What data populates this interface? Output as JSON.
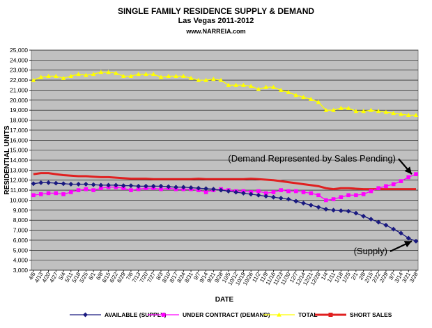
{
  "chart_data": {
    "type": "line",
    "title": "SINGLE FAMILY RESIDENCE SUPPLY & DEMAND",
    "subtitle": "Las Vegas 2011-2012",
    "source": "www.NARREIA.com",
    "xlabel": "DATE",
    "ylabel": "RESIDENTIAL UNITS",
    "ylim": [
      3000,
      25000
    ],
    "ytick_step": 1000,
    "grid": true,
    "legend_position": "bottom",
    "x_tick_labels": [
      "4/6",
      "4/13",
      "4/20",
      "4/27",
      "5/4",
      "5/11",
      "5/18",
      "5/25",
      "6/1",
      "6/8",
      "6/15",
      "6/22",
      "6/29",
      "7/6",
      "7/13",
      "7/20",
      "7/27",
      "8/3",
      "8/10",
      "8/17",
      "8/24",
      "8/31",
      "9/7",
      "9/14",
      "9/21",
      "9/28",
      "10/5",
      "10/12",
      "10/19",
      "10/26",
      "11/2",
      "11/9",
      "11/16",
      "11/23",
      "11/30",
      "12/7",
      "12/14",
      "12/21",
      "12/28",
      "1/4",
      "1/11",
      "1/18",
      "1/25",
      "2/1",
      "2/8",
      "2/15",
      "2/22",
      "2/29",
      "3/7",
      "3/14",
      "3/21",
      "3/28"
    ],
    "series": [
      {
        "name": "AVAILABLE (SUPPLY)",
        "color": "#1a1a80",
        "marker": "diamond",
        "values": [
          11650,
          11750,
          11750,
          11700,
          11650,
          11600,
          11600,
          11600,
          11550,
          11500,
          11500,
          11500,
          11450,
          11450,
          11400,
          11400,
          11400,
          11400,
          11350,
          11300,
          11300,
          11250,
          11200,
          11150,
          11100,
          11000,
          10900,
          10800,
          10700,
          10600,
          10500,
          10400,
          10300,
          10200,
          10100,
          9900,
          9700,
          9500,
          9300,
          9100,
          9000,
          8950,
          8900,
          8700,
          8400,
          8100,
          7800,
          7500,
          7100,
          6700,
          6200,
          5900
        ]
      },
      {
        "name": "UNDER CONTRACT (DEMAND)",
        "color": "#ff00ff",
        "marker": "square",
        "values": [
          10500,
          10600,
          10700,
          10700,
          10600,
          10800,
          11000,
          11100,
          11000,
          11200,
          11300,
          11300,
          11200,
          11000,
          11100,
          11200,
          11200,
          11100,
          11200,
          11100,
          11100,
          11100,
          11000,
          10800,
          11000,
          11100,
          11000,
          10900,
          10900,
          10800,
          10900,
          10700,
          10800,
          11000,
          10900,
          10900,
          10800,
          10700,
          10500,
          10000,
          10100,
          10300,
          10500,
          10500,
          10600,
          10900,
          11200,
          11400,
          11600,
          11900,
          12300,
          12600
        ]
      },
      {
        "name": "TOTAL",
        "color": "#ffff00",
        "marker": "triangle",
        "values": [
          22000,
          22300,
          22400,
          22400,
          22200,
          22400,
          22600,
          22500,
          22600,
          22800,
          22800,
          22700,
          22400,
          22400,
          22600,
          22600,
          22600,
          22300,
          22400,
          22400,
          22400,
          22200,
          22000,
          22000,
          22100,
          22000,
          21500,
          21500,
          21500,
          21400,
          21100,
          21300,
          21300,
          21000,
          20800,
          20500,
          20300,
          20100,
          19800,
          19000,
          19000,
          19200,
          19200,
          18900,
          18900,
          19000,
          18900,
          18800,
          18700,
          18600,
          18500,
          18500
        ]
      },
      {
        "name": "SHORT SALES",
        "color": "#e02020",
        "marker": "line",
        "values": [
          12600,
          12700,
          12700,
          12600,
          12500,
          12450,
          12400,
          12400,
          12350,
          12300,
          12300,
          12250,
          12200,
          12150,
          12150,
          12150,
          12100,
          12100,
          12100,
          12100,
          12100,
          12100,
          12150,
          12100,
          12100,
          12100,
          12100,
          12100,
          12100,
          12150,
          12100,
          12050,
          12000,
          11900,
          11800,
          11700,
          11600,
          11500,
          11400,
          11200,
          11100,
          11200,
          11200,
          11150,
          11100,
          11100,
          11100,
          11100,
          11100,
          11100,
          11100,
          11100
        ]
      }
    ],
    "annotations": [
      {
        "text": "(Demand Represented by Sales Pending)",
        "target_series": 1
      },
      {
        "text": "(Supply)",
        "target_series": 0
      }
    ]
  }
}
